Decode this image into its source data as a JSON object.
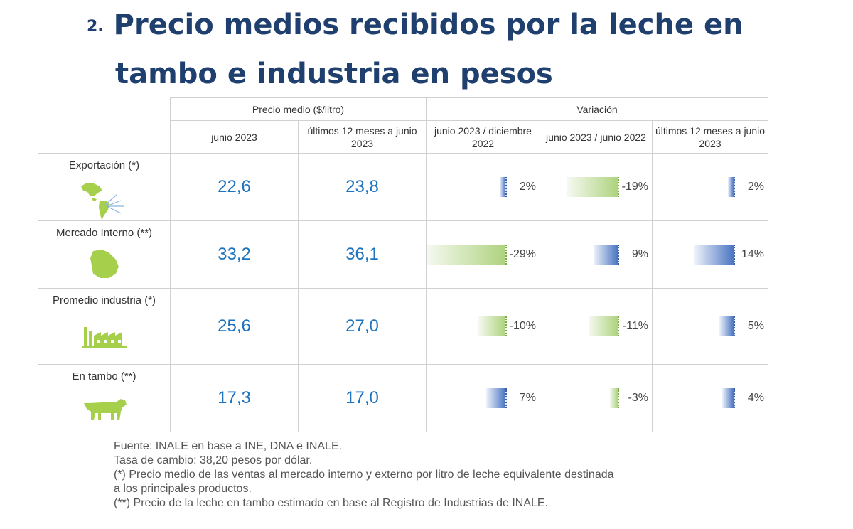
{
  "title": {
    "number": "2.",
    "line1": "Precio medios recibidos por la leche en",
    "line2": "tambo e industria en pesos"
  },
  "header": {
    "group_price": "Precio medio ($/litro)",
    "group_variation": "Variación",
    "columns": [
      "junio 2023",
      "últimos 12 meses a junio 2023",
      "junio 2023 / diciembre 2022",
      "junio 2023 / junio 2022",
      "últimos 12 meses a junio 2023"
    ]
  },
  "rows": [
    {
      "label": "Exportación (*)",
      "icon": "americas-map-icon",
      "price_jun": "22,6",
      "price_12m": "23,8",
      "var": [
        {
          "text": "2%",
          "value": 2
        },
        {
          "text": "-19%",
          "value": -19
        },
        {
          "text": "2%",
          "value": 2
        }
      ]
    },
    {
      "label": "Mercado Interno (**)",
      "icon": "uruguay-map-icon",
      "price_jun": "33,2",
      "price_12m": "36,1",
      "var": [
        {
          "text": "-29%",
          "value": -29
        },
        {
          "text": "9%",
          "value": 9
        },
        {
          "text": "14%",
          "value": 14
        }
      ]
    },
    {
      "label": "Promedio industria (*)",
      "icon": "factory-icon",
      "price_jun": "25,6",
      "price_12m": "27,0",
      "var": [
        {
          "text": "-10%",
          "value": -10
        },
        {
          "text": "-11%",
          "value": -11
        },
        {
          "text": "5%",
          "value": 5
        }
      ]
    },
    {
      "label": "En tambo (**)",
      "icon": "cow-icon",
      "price_jun": "17,3",
      "price_12m": "17,0",
      "var": [
        {
          "text": "7%",
          "value": 7
        },
        {
          "text": "-3%",
          "value": -3
        },
        {
          "text": "4%",
          "value": 4
        }
      ]
    }
  ],
  "colors": {
    "title": "#1f3f6e",
    "value": "#1e73be",
    "positive_bar": "#4b75c2",
    "negative_bar": "#aed37e",
    "icon": "#a6cf4c"
  },
  "notes": [
    "Fuente: INALE en base a INE, DNA e INALE.",
    "Tasa de cambio: 38,20 pesos por dólar.",
    "(*) Precio medio de las ventas al mercado interno y externo por litro de leche equivalente destinada",
    "a los principales productos.",
    "(**) Precio de la leche en tambo estimado en base al Registro de Industrias de INALE."
  ]
}
